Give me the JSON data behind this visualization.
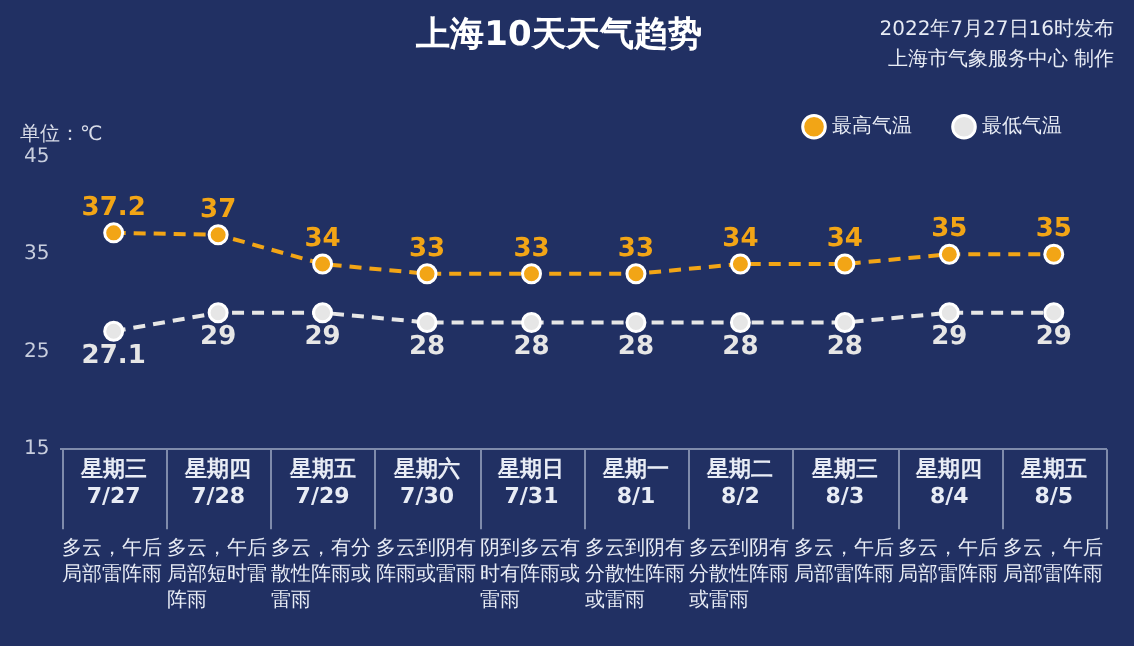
{
  "chart_data": {
    "type": "line",
    "title": "上海10天天气趋势",
    "ylabel": "单位：℃",
    "categories": [
      "星期三 7/27",
      "星期四 7/28",
      "星期五 7/29",
      "星期六 7/30",
      "星期日 7/31",
      "星期一 8/1",
      "星期二 8/2",
      "星期三 8/3",
      "星期四 8/4",
      "星期五 8/5"
    ],
    "series": [
      {
        "name": "最高气温",
        "color": "#f2a516",
        "values": [
          37.2,
          37,
          34,
          33,
          33,
          33,
          34,
          34,
          35,
          35
        ]
      },
      {
        "name": "最低气温",
        "color": "#e6e6e6",
        "values": [
          27.1,
          29,
          29,
          28,
          28,
          28,
          28,
          28,
          29,
          29
        ]
      }
    ],
    "ylim": [
      15,
      45
    ],
    "yticks": [
      15,
      25,
      35,
      45
    ],
    "grid": false,
    "legend": "top right",
    "marker": "circle",
    "line_style": "dashed",
    "data_labels": true,
    "annotations": [
      "多云，午后局部雷阵雨",
      "多云，午后局部短时雷阵雨",
      "多云，有分散性阵雨或雷雨",
      "多云到阴有阵雨或雷雨",
      "阴到多云有时有阵雨或雷雨",
      "多云到阴有分散性阵雨或雷雨",
      "多云到阴有分散性阵雨或雷雨",
      "多云，午后局部雷阵雨",
      "多云，午后局部雷阵雨",
      "多云，午后局部雷阵雨",
      "2022年7月27日16时发布",
      "上海市气象服务中心 制作"
    ]
  }
}
